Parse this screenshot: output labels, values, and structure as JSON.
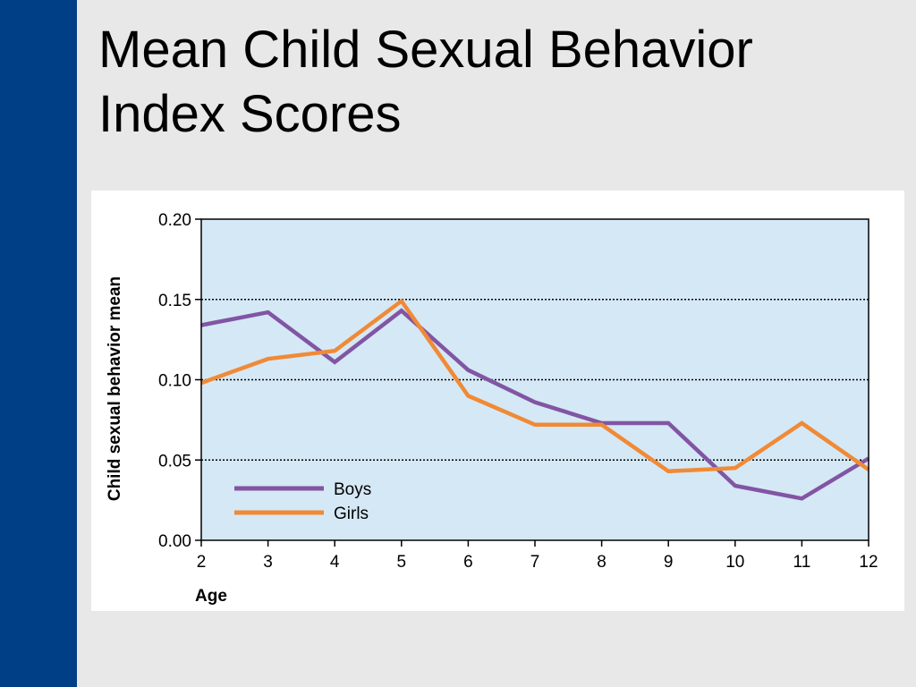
{
  "slide": {
    "title_line1": "Mean Child Sexual Behavior",
    "title_line2": "Index Scores"
  },
  "colors": {
    "sidebar": "#003f85",
    "plot_background": "#d5e8f5",
    "boys": "#8155a4",
    "girls": "#f08a36"
  },
  "chart_data": {
    "type": "line",
    "title": "",
    "xlabel": "Age",
    "ylabel": "Child sexual behavior mean",
    "x": [
      2,
      3,
      4,
      5,
      6,
      7,
      8,
      9,
      10,
      11,
      12
    ],
    "x_tick_labels": [
      "2",
      "3",
      "4",
      "5",
      "6",
      "7",
      "8",
      "9",
      "10",
      "11",
      "12"
    ],
    "y_tick_labels": [
      "0.00",
      "0.05",
      "0.10",
      "0.15",
      "0.20"
    ],
    "y_ticks": [
      0.0,
      0.05,
      0.1,
      0.15,
      0.2
    ],
    "xlim": [
      2,
      12
    ],
    "ylim": [
      0.0,
      0.2
    ],
    "grid": "dotted horizontal at 0.05, 0.10, 0.15",
    "legend_position": "bottom-left",
    "series": [
      {
        "name": "Boys",
        "color": "#8155a4",
        "values": [
          0.134,
          0.142,
          0.111,
          0.143,
          0.106,
          0.086,
          0.073,
          0.073,
          0.034,
          0.026,
          0.051
        ]
      },
      {
        "name": "Girls",
        "color": "#f08a36",
        "values": [
          0.098,
          0.113,
          0.118,
          0.149,
          0.09,
          0.072,
          0.072,
          0.043,
          0.045,
          0.073,
          0.044
        ]
      }
    ]
  }
}
